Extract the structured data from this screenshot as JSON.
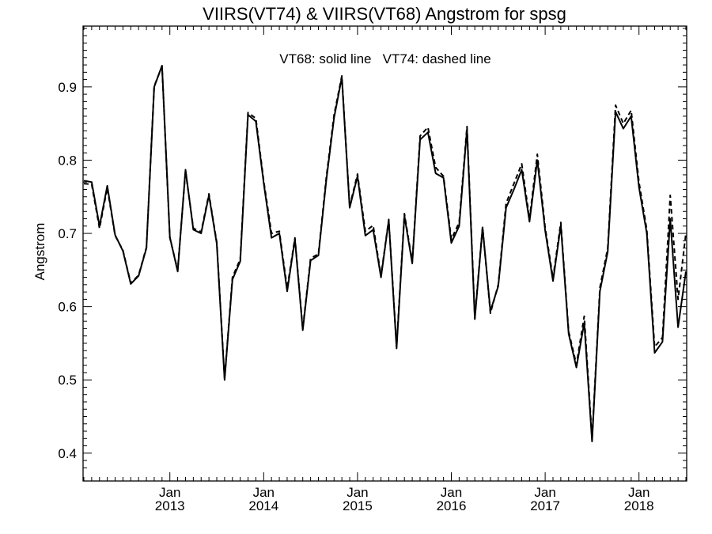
{
  "chart_data": {
    "type": "line",
    "title": "VIIRS(VT74) & VIIRS(VT68)  Angstrom for spsg",
    "annotation": "VT68: solid line   VT74: dashed line",
    "ylabel": "Angstrom",
    "xlabel": "",
    "x_axis": "monthly, Feb 2012 – Jul 2018",
    "xlim": [
      "2012-02",
      "2018-07"
    ],
    "ylim": [
      0.362,
      0.983
    ],
    "yticks": [
      "0.4",
      "0.5",
      "0.6",
      "0.7",
      "0.8",
      "0.9"
    ],
    "xticks": [
      {
        "month": "Jan",
        "year": "2013"
      },
      {
        "month": "Jan",
        "year": "2014"
      },
      {
        "month": "Jan",
        "year": "2015"
      },
      {
        "month": "Jan",
        "year": "2016"
      },
      {
        "month": "Jan",
        "year": "2017"
      },
      {
        "month": "Jan",
        "year": "2018"
      }
    ],
    "grid": false,
    "x": [
      "2012-02",
      "2012-03",
      "2012-04",
      "2012-05",
      "2012-06",
      "2012-07",
      "2012-08",
      "2012-09",
      "2012-10",
      "2012-11",
      "2012-12",
      "2013-01",
      "2013-02",
      "2013-03",
      "2013-04",
      "2013-05",
      "2013-06",
      "2013-07",
      "2013-08",
      "2013-09",
      "2013-10",
      "2013-11",
      "2013-12",
      "2014-01",
      "2014-02",
      "2014-03",
      "2014-04",
      "2014-05",
      "2014-06",
      "2014-07",
      "2014-08",
      "2014-09",
      "2014-10",
      "2014-11",
      "2014-12",
      "2015-01",
      "2015-02",
      "2015-03",
      "2015-04",
      "2015-05",
      "2015-06",
      "2015-07",
      "2015-08",
      "2015-09",
      "2015-10",
      "2015-11",
      "2015-12",
      "2016-01",
      "2016-02",
      "2016-03",
      "2016-04",
      "2016-05",
      "2016-06",
      "2016-07",
      "2016-08",
      "2016-09",
      "2016-10",
      "2016-11",
      "2016-12",
      "2017-01",
      "2017-02",
      "2017-03",
      "2017-04",
      "2017-05",
      "2017-06",
      "2017-07",
      "2017-08",
      "2017-09",
      "2017-10",
      "2017-11",
      "2017-12",
      "2018-01",
      "2018-02",
      "2018-03",
      "2018-04",
      "2018-05",
      "2018-06",
      "2018-07"
    ],
    "series": [
      {
        "name": "VT68",
        "style": "solid",
        "color": "#000000",
        "values": [
          0.772,
          0.77,
          0.71,
          0.765,
          0.698,
          0.676,
          0.631,
          0.642,
          0.68,
          0.9,
          0.929,
          0.695,
          0.648,
          0.787,
          0.705,
          0.7,
          0.752,
          0.686,
          0.5,
          0.637,
          0.662,
          0.862,
          0.853,
          0.769,
          0.694,
          0.7,
          0.621,
          0.692,
          0.568,
          0.663,
          0.67,
          0.772,
          0.858,
          0.913,
          0.735,
          0.778,
          0.697,
          0.705,
          0.64,
          0.718,
          0.543,
          0.724,
          0.659,
          0.828,
          0.838,
          0.782,
          0.776,
          0.687,
          0.71,
          0.842,
          0.583,
          0.708,
          0.594,
          0.628,
          0.735,
          0.76,
          0.787,
          0.716,
          0.8,
          0.704,
          0.635,
          0.711,
          0.563,
          0.517,
          0.578,
          0.416,
          0.621,
          0.675,
          0.866,
          0.843,
          0.86,
          0.763,
          0.7,
          0.537,
          0.552,
          0.72,
          0.572,
          0.648
        ]
      },
      {
        "name": "VT74",
        "style": "dashed",
        "color": "#000000",
        "values": [
          0.768,
          0.767,
          0.707,
          0.762,
          0.697,
          0.677,
          0.632,
          0.643,
          0.681,
          0.901,
          0.928,
          0.694,
          0.65,
          0.785,
          0.707,
          0.702,
          0.754,
          0.688,
          0.502,
          0.64,
          0.665,
          0.865,
          0.857,
          0.772,
          0.7,
          0.703,
          0.625,
          0.694,
          0.57,
          0.666,
          0.672,
          0.776,
          0.862,
          0.915,
          0.737,
          0.781,
          0.703,
          0.711,
          0.642,
          0.719,
          0.546,
          0.727,
          0.661,
          0.833,
          0.845,
          0.79,
          0.778,
          0.692,
          0.715,
          0.846,
          0.586,
          0.709,
          0.591,
          0.63,
          0.741,
          0.768,
          0.795,
          0.72,
          0.808,
          0.708,
          0.639,
          0.715,
          0.566,
          0.521,
          0.587,
          0.42,
          0.626,
          0.68,
          0.875,
          0.85,
          0.868,
          0.77,
          0.705,
          0.545,
          0.558,
          0.752,
          0.61,
          0.7
        ]
      }
    ]
  }
}
